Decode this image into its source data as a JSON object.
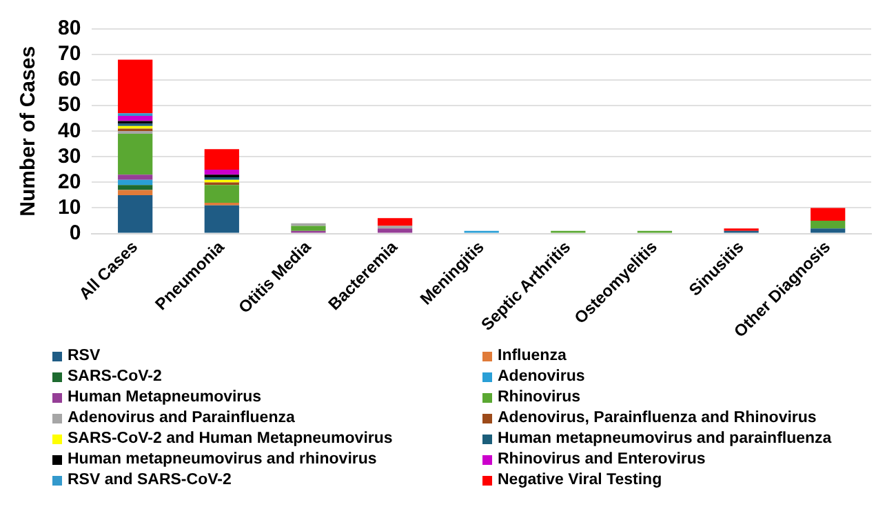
{
  "chart_data": {
    "type": "bar",
    "stacked": true,
    "ylabel": "Number of Cases",
    "categories": [
      "All Cases",
      "Pneumonia",
      "Otitis Media",
      "Bacteremia",
      "Meningitis",
      "Septic Arthritis",
      "Osteomyelitis",
      "Sinusitis",
      "Other Diagnosis"
    ],
    "ylim": [
      0,
      80
    ],
    "yticks": [
      0,
      10,
      20,
      30,
      40,
      50,
      60,
      70,
      80
    ],
    "grid": "y",
    "legend": "bottom",
    "series": [
      {
        "name": "RSV",
        "color": "#1f5c85",
        "values": [
          15,
          11,
          0,
          0,
          0,
          0,
          0,
          1,
          2
        ]
      },
      {
        "name": "Influenza",
        "color": "#e07b39",
        "values": [
          2,
          1,
          0,
          0,
          0,
          0,
          0,
          0,
          0
        ]
      },
      {
        "name": "SARS-CoV-2",
        "color": "#1e6b30",
        "values": [
          2,
          0,
          0,
          0,
          0,
          0,
          0,
          0,
          0
        ]
      },
      {
        "name": "Adenovirus",
        "color": "#2a9fd6",
        "values": [
          2,
          0,
          0,
          0,
          1,
          0,
          0,
          0,
          0
        ]
      },
      {
        "name": "Human Metapneumovirus",
        "color": "#953e96",
        "values": [
          2,
          0,
          1,
          2,
          0,
          0,
          0,
          0,
          0
        ]
      },
      {
        "name": "Rhinovirus",
        "color": "#5aa832",
        "values": [
          16,
          7,
          2,
          0,
          0,
          1,
          1,
          0,
          3
        ]
      },
      {
        "name": "Adenovirus and Parainfluenza",
        "color": "#a6a6a6",
        "values": [
          1,
          0,
          1,
          1,
          0,
          0,
          0,
          0,
          0
        ]
      },
      {
        "name": "Adenovirus, Parainfluenza and Rhinovirus",
        "color": "#9c4a1a",
        "values": [
          1,
          1,
          0,
          0,
          0,
          0,
          0,
          0,
          0
        ]
      },
      {
        "name": "SARS-CoV-2 and Human Metapneumovirus",
        "color": "#ffff00",
        "values": [
          1,
          1,
          0,
          0,
          0,
          0,
          0,
          0,
          0
        ]
      },
      {
        "name": "Human metapneumovirus and parainfluenza",
        "color": "#1b5e7a",
        "values": [
          1,
          1,
          0,
          0,
          0,
          0,
          0,
          0,
          0
        ]
      },
      {
        "name": "Human metapneumovirus and rhinovirus",
        "color": "#000000",
        "values": [
          1,
          1,
          0,
          0,
          0,
          0,
          0,
          0,
          0
        ]
      },
      {
        "name": "Rhinovirus and Enterovirus",
        "color": "#cc00cc",
        "values": [
          2,
          2,
          0,
          0,
          0,
          0,
          0,
          0,
          0
        ]
      },
      {
        "name": "RSV and SARS-CoV-2",
        "color": "#3399cc",
        "values": [
          1,
          0,
          0,
          0,
          0,
          0,
          0,
          0,
          0
        ]
      },
      {
        "name": "Negative Viral Testing",
        "color": "#ff0000",
        "values": [
          21,
          8,
          0,
          3,
          0,
          0,
          0,
          1,
          5
        ]
      }
    ]
  }
}
